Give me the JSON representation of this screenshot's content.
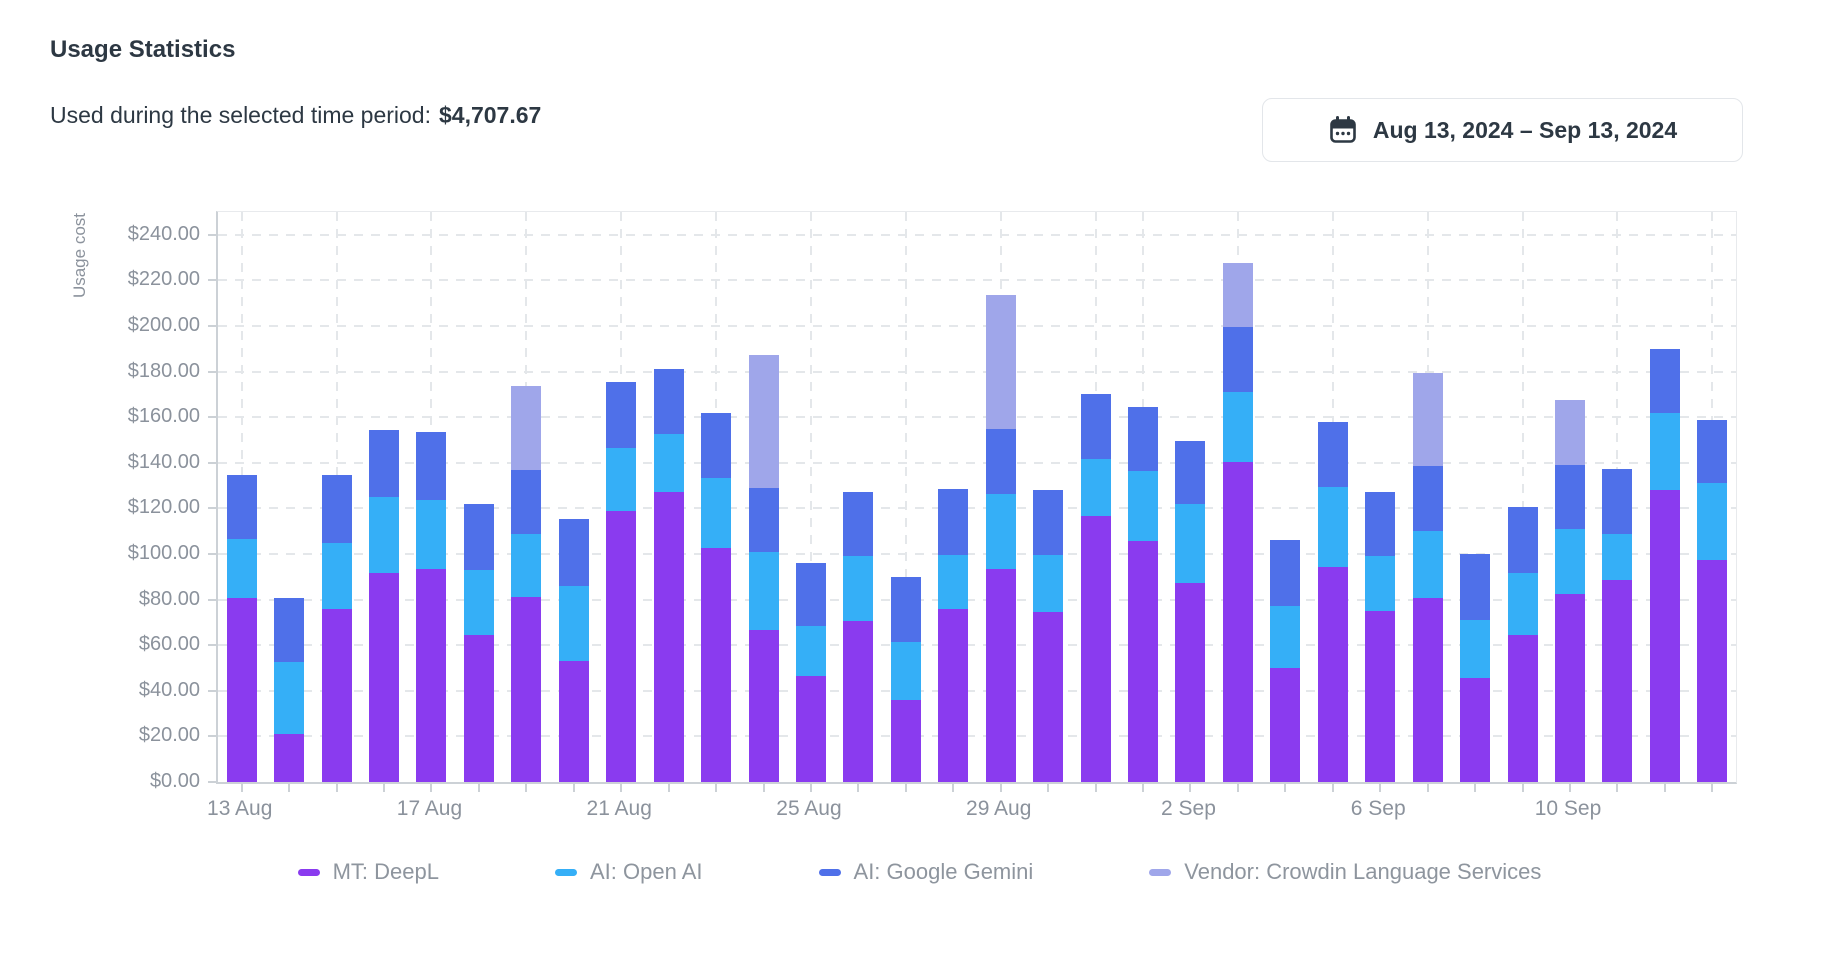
{
  "header": {
    "title": "Usage Statistics",
    "subtitle": "Used during the selected time period:",
    "amount": "$4,707.67"
  },
  "date_picker": {
    "icon": "calendar-icon",
    "label": "Aug 13, 2024 – Sep 13, 2024"
  },
  "colors": {
    "text_dark": "#2d3843",
    "text_muted": "#8b929c",
    "legend_text": "#8e959e",
    "axis": "#ccd1d6",
    "grid": "#e4e7ea",
    "button_border": "#e3e6ea",
    "deepl_purple": "#8A3BEF",
    "openai_cyan": "#35AFF7",
    "gemini_blue": "#4F70E9",
    "vendor_lavender": "#9FA6EA"
  },
  "chart_data": {
    "type": "bar",
    "stacked": true,
    "title": "",
    "xlabel": "",
    "ylabel": "Usage cost",
    "ylim": [
      0,
      250
    ],
    "y_ticks": [
      0,
      20,
      40,
      60,
      80,
      100,
      120,
      140,
      160,
      180,
      200,
      220,
      240
    ],
    "y_tick_prefix": "$",
    "y_tick_decimals": 2,
    "grid": "dashed",
    "legend_position": "bottom",
    "categories": [
      "13 Aug",
      "14 Aug",
      "15 Aug",
      "16 Aug",
      "17 Aug",
      "18 Aug",
      "19 Aug",
      "20 Aug",
      "21 Aug",
      "22 Aug",
      "23 Aug",
      "24 Aug",
      "25 Aug",
      "26 Aug",
      "27 Aug",
      "28 Aug",
      "29 Aug",
      "30 Aug",
      "31 Aug",
      "1 Sep",
      "2 Sep",
      "3 Sep",
      "4 Sep",
      "5 Sep",
      "6 Sep",
      "7 Sep",
      "8 Sep",
      "9 Sep",
      "10 Sep",
      "11 Sep",
      "12 Sep",
      "13 Sep"
    ],
    "x_label_indices": [
      0,
      4,
      8,
      12,
      16,
      20,
      24,
      28
    ],
    "x_gridline_indices": [
      0,
      2,
      4,
      6,
      8,
      10,
      12,
      14,
      16,
      18,
      19,
      21,
      23,
      25,
      27,
      29,
      31
    ],
    "series": [
      {
        "name": "MT: DeepL",
        "color": "#8A3BEF",
        "values": [
          80.5,
          21,
          76,
          91.5,
          93.5,
          64.5,
          81,
          53,
          119,
          127,
          102.5,
          66.5,
          46.5,
          70.5,
          36,
          76,
          93.5,
          74.5,
          116.5,
          105.5,
          87.5,
          140.5,
          50,
          94.5,
          75,
          80.5,
          45.5,
          64.5,
          82.5,
          88.5,
          128,
          97.5
        ]
      },
      {
        "name": "AI: Open AI",
        "color": "#35AFF7",
        "values": [
          26,
          31.5,
          29,
          33.5,
          30,
          28.5,
          28,
          33,
          27.5,
          25.5,
          31,
          34.5,
          22,
          28.5,
          25.5,
          23.5,
          33,
          25,
          25,
          31,
          34.5,
          30.5,
          27,
          35,
          24,
          29.5,
          25.5,
          27,
          28.5,
          20.5,
          34,
          33.5
        ]
      },
      {
        "name": "AI: Google Gemini",
        "color": "#4F70E9",
        "values": [
          28,
          28,
          29.5,
          29.5,
          30,
          29,
          28,
          29.5,
          29,
          28.5,
          28.5,
          28,
          27.5,
          28,
          28.5,
          29,
          28.5,
          28.5,
          28.5,
          28,
          27.5,
          28.5,
          29,
          28.5,
          28,
          28.5,
          29,
          29,
          28,
          28.5,
          28,
          28
        ]
      },
      {
        "name": "Vendor: Crowdin Language Services",
        "color": "#9FA6EA",
        "values": [
          0,
          0,
          0,
          0,
          0,
          0,
          36.5,
          0,
          0,
          0,
          0,
          58.5,
          0,
          0,
          0,
          0,
          58.5,
          0,
          0,
          0,
          0,
          28,
          0,
          0,
          0,
          41,
          0,
          0,
          28.5,
          0,
          0,
          0
        ]
      }
    ]
  }
}
